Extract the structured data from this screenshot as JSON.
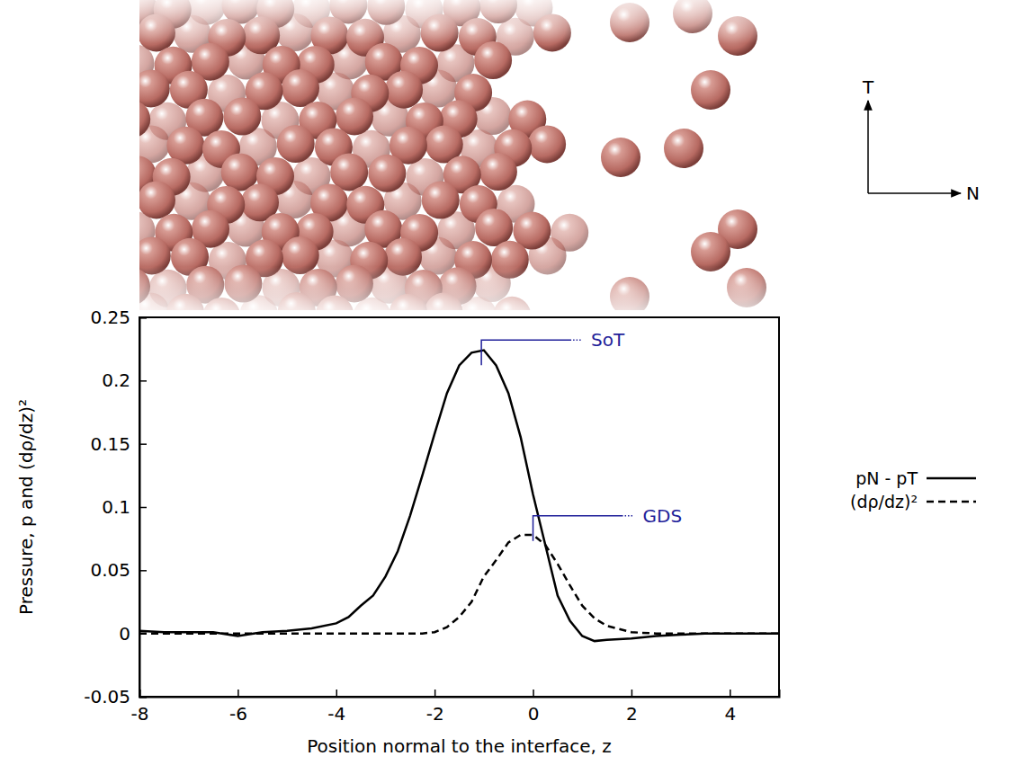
{
  "chart_data": {
    "type": "line",
    "xlabel": "Position normal to the interface, z",
    "ylabel": "Pressure, p and (dρ/dz)²",
    "x": [
      -8,
      -7.5,
      -7,
      -6.5,
      -6,
      -5.5,
      -5,
      -4.5,
      -4,
      -3.75,
      -3.5,
      -3.25,
      -3,
      -2.75,
      -2.5,
      -2.25,
      -2,
      -1.75,
      -1.5,
      -1.25,
      -1,
      -0.75,
      -0.5,
      -0.25,
      0,
      0.25,
      0.5,
      0.75,
      1,
      1.25,
      1.5,
      2,
      2.5,
      3,
      3.5,
      4,
      4.5,
      5
    ],
    "series": [
      {
        "name": "pN - pT",
        "color": "#000000",
        "line_style": "solid",
        "values": [
          0.002,
          0.001,
          0.001,
          0.001,
          -0.002,
          0.001,
          0.002,
          0.004,
          0.008,
          0.013,
          0.022,
          0.03,
          0.045,
          0.065,
          0.093,
          0.125,
          0.158,
          0.19,
          0.212,
          0.222,
          0.224,
          0.212,
          0.19,
          0.155,
          0.11,
          0.07,
          0.03,
          0.01,
          -0.002,
          -0.006,
          -0.005,
          -0.004,
          -0.002,
          -0.001,
          0,
          0,
          0,
          0
        ]
      },
      {
        "name": "(dρ/dz)²",
        "color": "#000000",
        "line_style": "dashed",
        "values": [
          0,
          0,
          0,
          0,
          0,
          0,
          0,
          0,
          0,
          0,
          0,
          0,
          0,
          0,
          0,
          0,
          0.001,
          0.005,
          0.013,
          0.025,
          0.045,
          0.058,
          0.072,
          0.078,
          0.078,
          0.07,
          0.055,
          0.038,
          0.022,
          0.012,
          0.006,
          0.001,
          0,
          0,
          0,
          0,
          0,
          0
        ]
      }
    ],
    "xlim": [
      -8,
      5
    ],
    "xticks": [
      -8,
      -6,
      -4,
      -2,
      0,
      2,
      4
    ],
    "ylim": [
      -0.05,
      0.25
    ],
    "yticks": [
      -0.05,
      0,
      0.05,
      0.1,
      0.15,
      0.2,
      0.25
    ],
    "legend": "right",
    "annotations": [
      {
        "text": "SoT",
        "x": -1.05,
        "y": 0.232,
        "color": "#1f1f9a"
      },
      {
        "text": "GDS",
        "x": 0,
        "y": 0.093,
        "color": "#1f1f9a"
      }
    ]
  },
  "illustration": {
    "tangential_label": "T",
    "normal_label": "N"
  }
}
